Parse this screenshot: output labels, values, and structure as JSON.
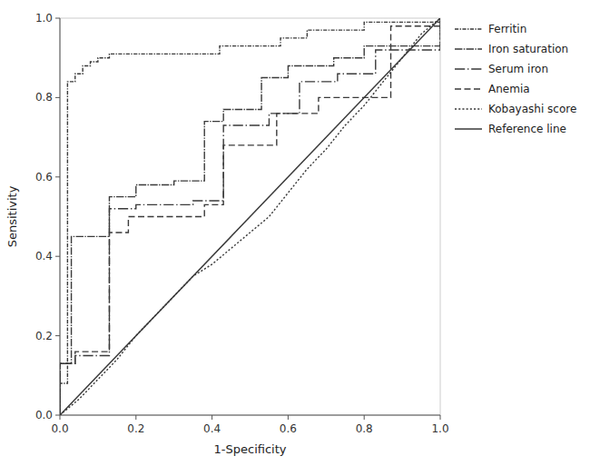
{
  "chart_data": {
    "type": "line",
    "xlabel": "1-Specificity",
    "ylabel": "Sensitivity",
    "xlim": [
      0.0,
      1.0
    ],
    "ylim": [
      0.0,
      1.0
    ],
    "xticks": [
      {
        "value": 0.0,
        "label": "0.0"
      },
      0.2,
      0.4,
      0.6,
      0.8,
      {
        "value": 1.0,
        "label": "1.0"
      }
    ],
    "yticks": [
      {
        "value": 0.0,
        "label": "0.0"
      },
      0.2,
      0.4,
      0.6,
      0.8,
      {
        "value": 1.0,
        "label": "1.0"
      }
    ],
    "grid": false,
    "legend": "right",
    "series": [
      {
        "name": "Ferritin",
        "color": "#3a3a3a",
        "line_style": "dashdot",
        "x": [
          0.0,
          0.0,
          0.02,
          0.02,
          0.04,
          0.04,
          0.06,
          0.06,
          0.08,
          0.08,
          0.1,
          0.1,
          0.13,
          0.13,
          0.16,
          0.16,
          0.42,
          0.42,
          0.58,
          0.58,
          0.65,
          0.65,
          0.8,
          0.8,
          1.0,
          1.0
        ],
        "values": [
          0.0,
          0.08,
          0.08,
          0.84,
          0.84,
          0.86,
          0.86,
          0.88,
          0.88,
          0.89,
          0.89,
          0.9,
          0.9,
          0.91,
          0.91,
          0.91,
          0.91,
          0.93,
          0.93,
          0.95,
          0.95,
          0.97,
          0.97,
          0.99,
          0.99,
          1.0
        ]
      },
      {
        "name": "Iron saturation",
        "color": "#3a3a3a",
        "line_style": "longdashdot",
        "x": [
          0.0,
          0.0,
          0.03,
          0.03,
          0.13,
          0.13,
          0.2,
          0.2,
          0.3,
          0.3,
          0.38,
          0.38,
          0.43,
          0.43,
          0.53,
          0.53,
          0.6,
          0.6,
          0.72,
          0.72,
          0.8,
          0.8,
          1.0,
          1.0
        ],
        "values": [
          0.0,
          0.13,
          0.13,
          0.45,
          0.45,
          0.55,
          0.55,
          0.58,
          0.58,
          0.59,
          0.59,
          0.74,
          0.74,
          0.77,
          0.77,
          0.85,
          0.85,
          0.88,
          0.88,
          0.9,
          0.9,
          0.93,
          0.93,
          1.0
        ]
      },
      {
        "name": "Serum iron",
        "color": "#3a3a3a",
        "line_style": "spaceddashdot",
        "x": [
          0.0,
          0.0,
          0.04,
          0.04,
          0.13,
          0.13,
          0.2,
          0.2,
          0.35,
          0.35,
          0.43,
          0.43,
          0.55,
          0.55,
          0.63,
          0.63,
          0.73,
          0.73,
          0.83,
          0.83,
          1.0,
          1.0
        ],
        "values": [
          0.0,
          0.13,
          0.13,
          0.15,
          0.15,
          0.52,
          0.52,
          0.53,
          0.53,
          0.54,
          0.54,
          0.73,
          0.73,
          0.76,
          0.76,
          0.84,
          0.84,
          0.86,
          0.86,
          0.92,
          0.92,
          1.0
        ]
      },
      {
        "name": "Anemia",
        "color": "#3a3a3a",
        "line_style": "dashed",
        "x": [
          0.0,
          0.0,
          0.04,
          0.04,
          0.13,
          0.13,
          0.18,
          0.18,
          0.38,
          0.38,
          0.43,
          0.43,
          0.57,
          0.57,
          0.68,
          0.68,
          0.87,
          0.87,
          1.0,
          1.0
        ],
        "values": [
          0.0,
          0.13,
          0.13,
          0.16,
          0.16,
          0.46,
          0.46,
          0.5,
          0.5,
          0.53,
          0.53,
          0.68,
          0.68,
          0.76,
          0.76,
          0.8,
          0.8,
          0.98,
          0.98,
          1.0
        ]
      },
      {
        "name": "Kobayashi score",
        "color": "#3a3a3a",
        "line_style": "dotted",
        "x": [
          0.0,
          0.05,
          0.1,
          0.15,
          0.2,
          0.25,
          0.3,
          0.35,
          0.4,
          0.45,
          0.5,
          0.55,
          0.6,
          0.65,
          0.7,
          0.75,
          0.8,
          0.85,
          0.9,
          0.95,
          1.0
        ],
        "values": [
          0.0,
          0.04,
          0.09,
          0.14,
          0.2,
          0.25,
          0.3,
          0.35,
          0.38,
          0.42,
          0.46,
          0.5,
          0.56,
          0.62,
          0.67,
          0.73,
          0.78,
          0.84,
          0.9,
          0.96,
          1.0
        ]
      },
      {
        "name": "Reference line",
        "color": "#3a3a3a",
        "line_style": "solid",
        "x": [
          0.0,
          1.0
        ],
        "values": [
          0.0,
          1.0
        ]
      }
    ]
  }
}
